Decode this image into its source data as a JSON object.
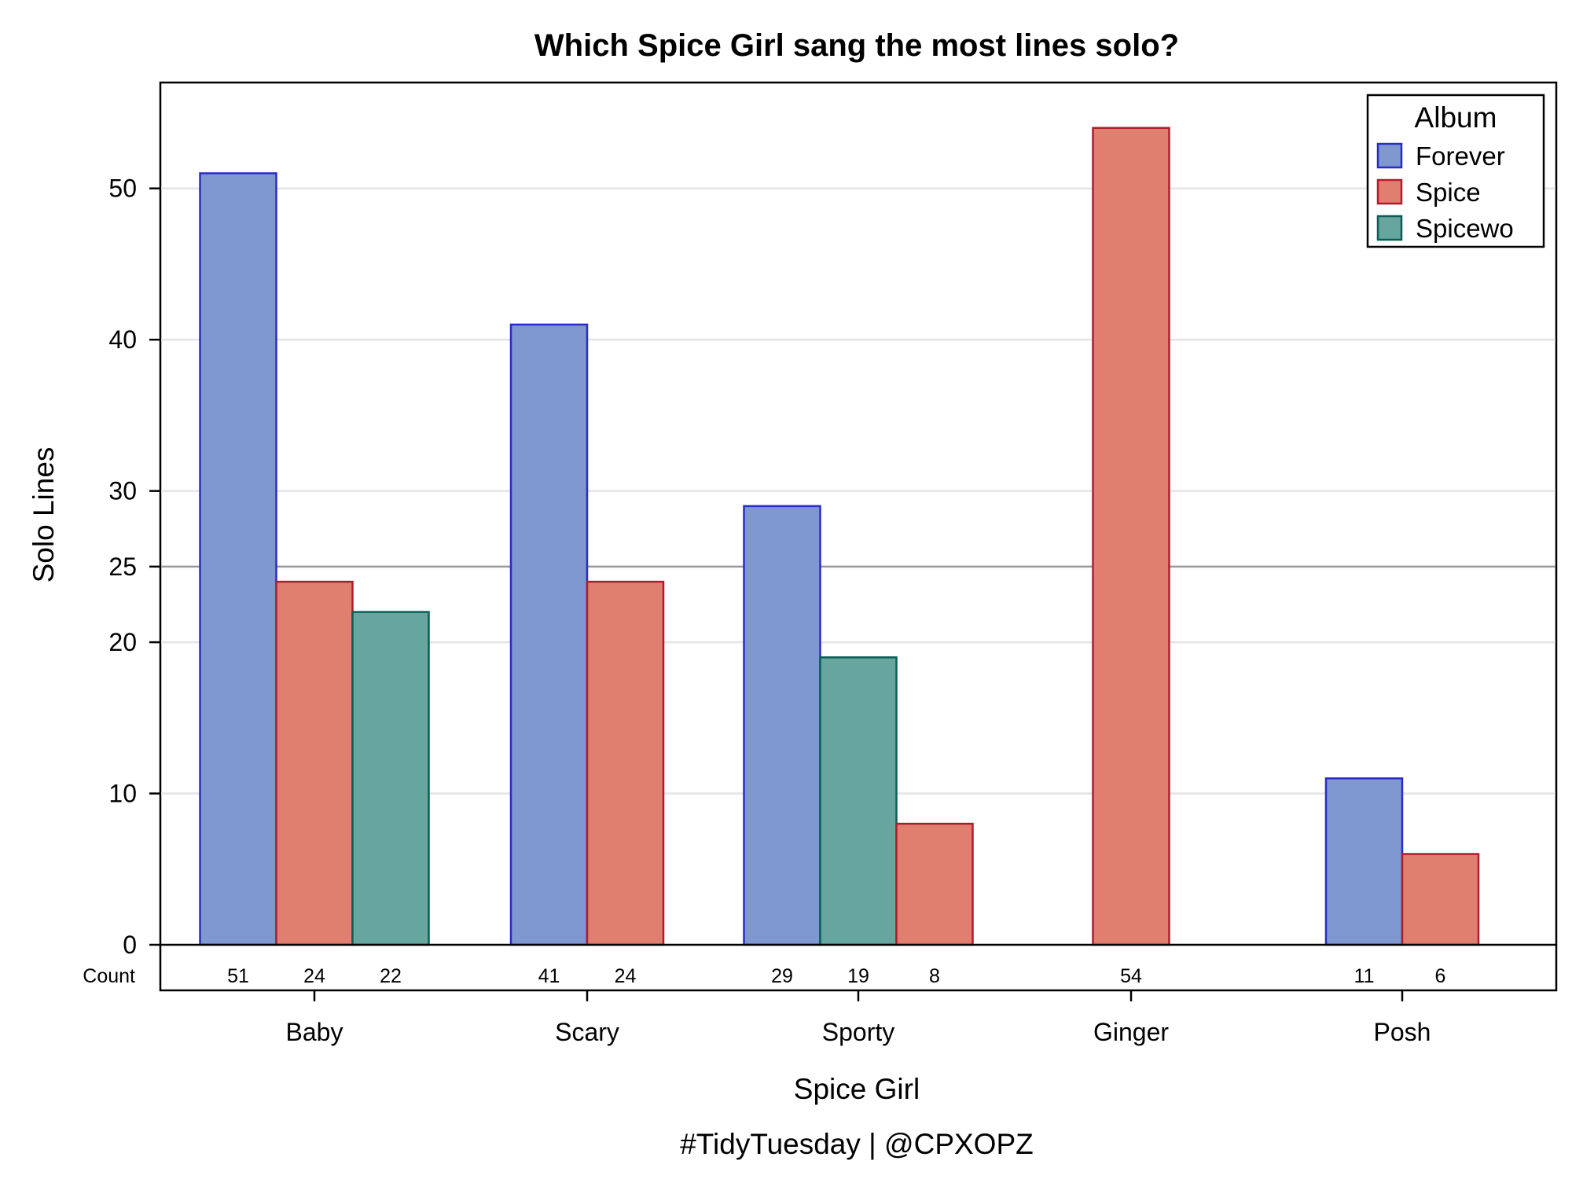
{
  "chart_data": {
    "type": "bar",
    "title": "Which Spice Girl sang the most lines solo?",
    "xlabel": "Spice Girl",
    "ylabel": "Solo Lines",
    "footnote": "#TidyTuesday | @CPXOPZ",
    "categories": [
      "Baby",
      "Scary",
      "Sporty",
      "Ginger",
      "Posh"
    ],
    "ylim": [
      0,
      57
    ],
    "yticks": [
      0,
      10,
      20,
      25,
      30,
      40,
      50
    ],
    "yticks_display": [
      "0",
      "10",
      "20",
      "25",
      "30",
      "40",
      "50"
    ],
    "reference_line": 25,
    "grid": true,
    "count_label": "Count",
    "legend": {
      "title": "Album",
      "position": "top-right",
      "entries": [
        {
          "name": "Forever",
          "fill": "#7f98cf",
          "stroke": "#2b2bc8"
        },
        {
          "name": "Spice",
          "fill": "#e07f70",
          "stroke": "#b01c2e"
        },
        {
          "name": "Spicewo",
          "fill": "#66a69e",
          "stroke": "#0b5e57"
        }
      ]
    },
    "bars": [
      {
        "category": "Baby",
        "series": "Forever",
        "value": 51,
        "count_text": "51"
      },
      {
        "category": "Baby",
        "series": "Spice",
        "value": 24,
        "count_text": "24"
      },
      {
        "category": "Baby",
        "series": "Spicewo",
        "value": 22,
        "count_text": "22"
      },
      {
        "category": "Scary",
        "series": "Forever",
        "value": 41,
        "count_text": "41"
      },
      {
        "category": "Scary",
        "series": "Spice",
        "value": 24,
        "count_text": "24"
      },
      {
        "category": "Sporty",
        "series": "Forever",
        "value": 29,
        "count_text": "29"
      },
      {
        "category": "Sporty",
        "series": "Spicewo",
        "value": 19,
        "count_text": "19"
      },
      {
        "category": "Sporty",
        "series": "Spice",
        "value": 8,
        "count_text": "8"
      },
      {
        "category": "Ginger",
        "series": "Spice",
        "value": 54,
        "count_text": "54"
      },
      {
        "category": "Posh",
        "series": "Forever",
        "value": 11,
        "count_text": "11"
      },
      {
        "category": "Posh",
        "series": "Spice",
        "value": 6,
        "count_text": "6"
      }
    ]
  }
}
